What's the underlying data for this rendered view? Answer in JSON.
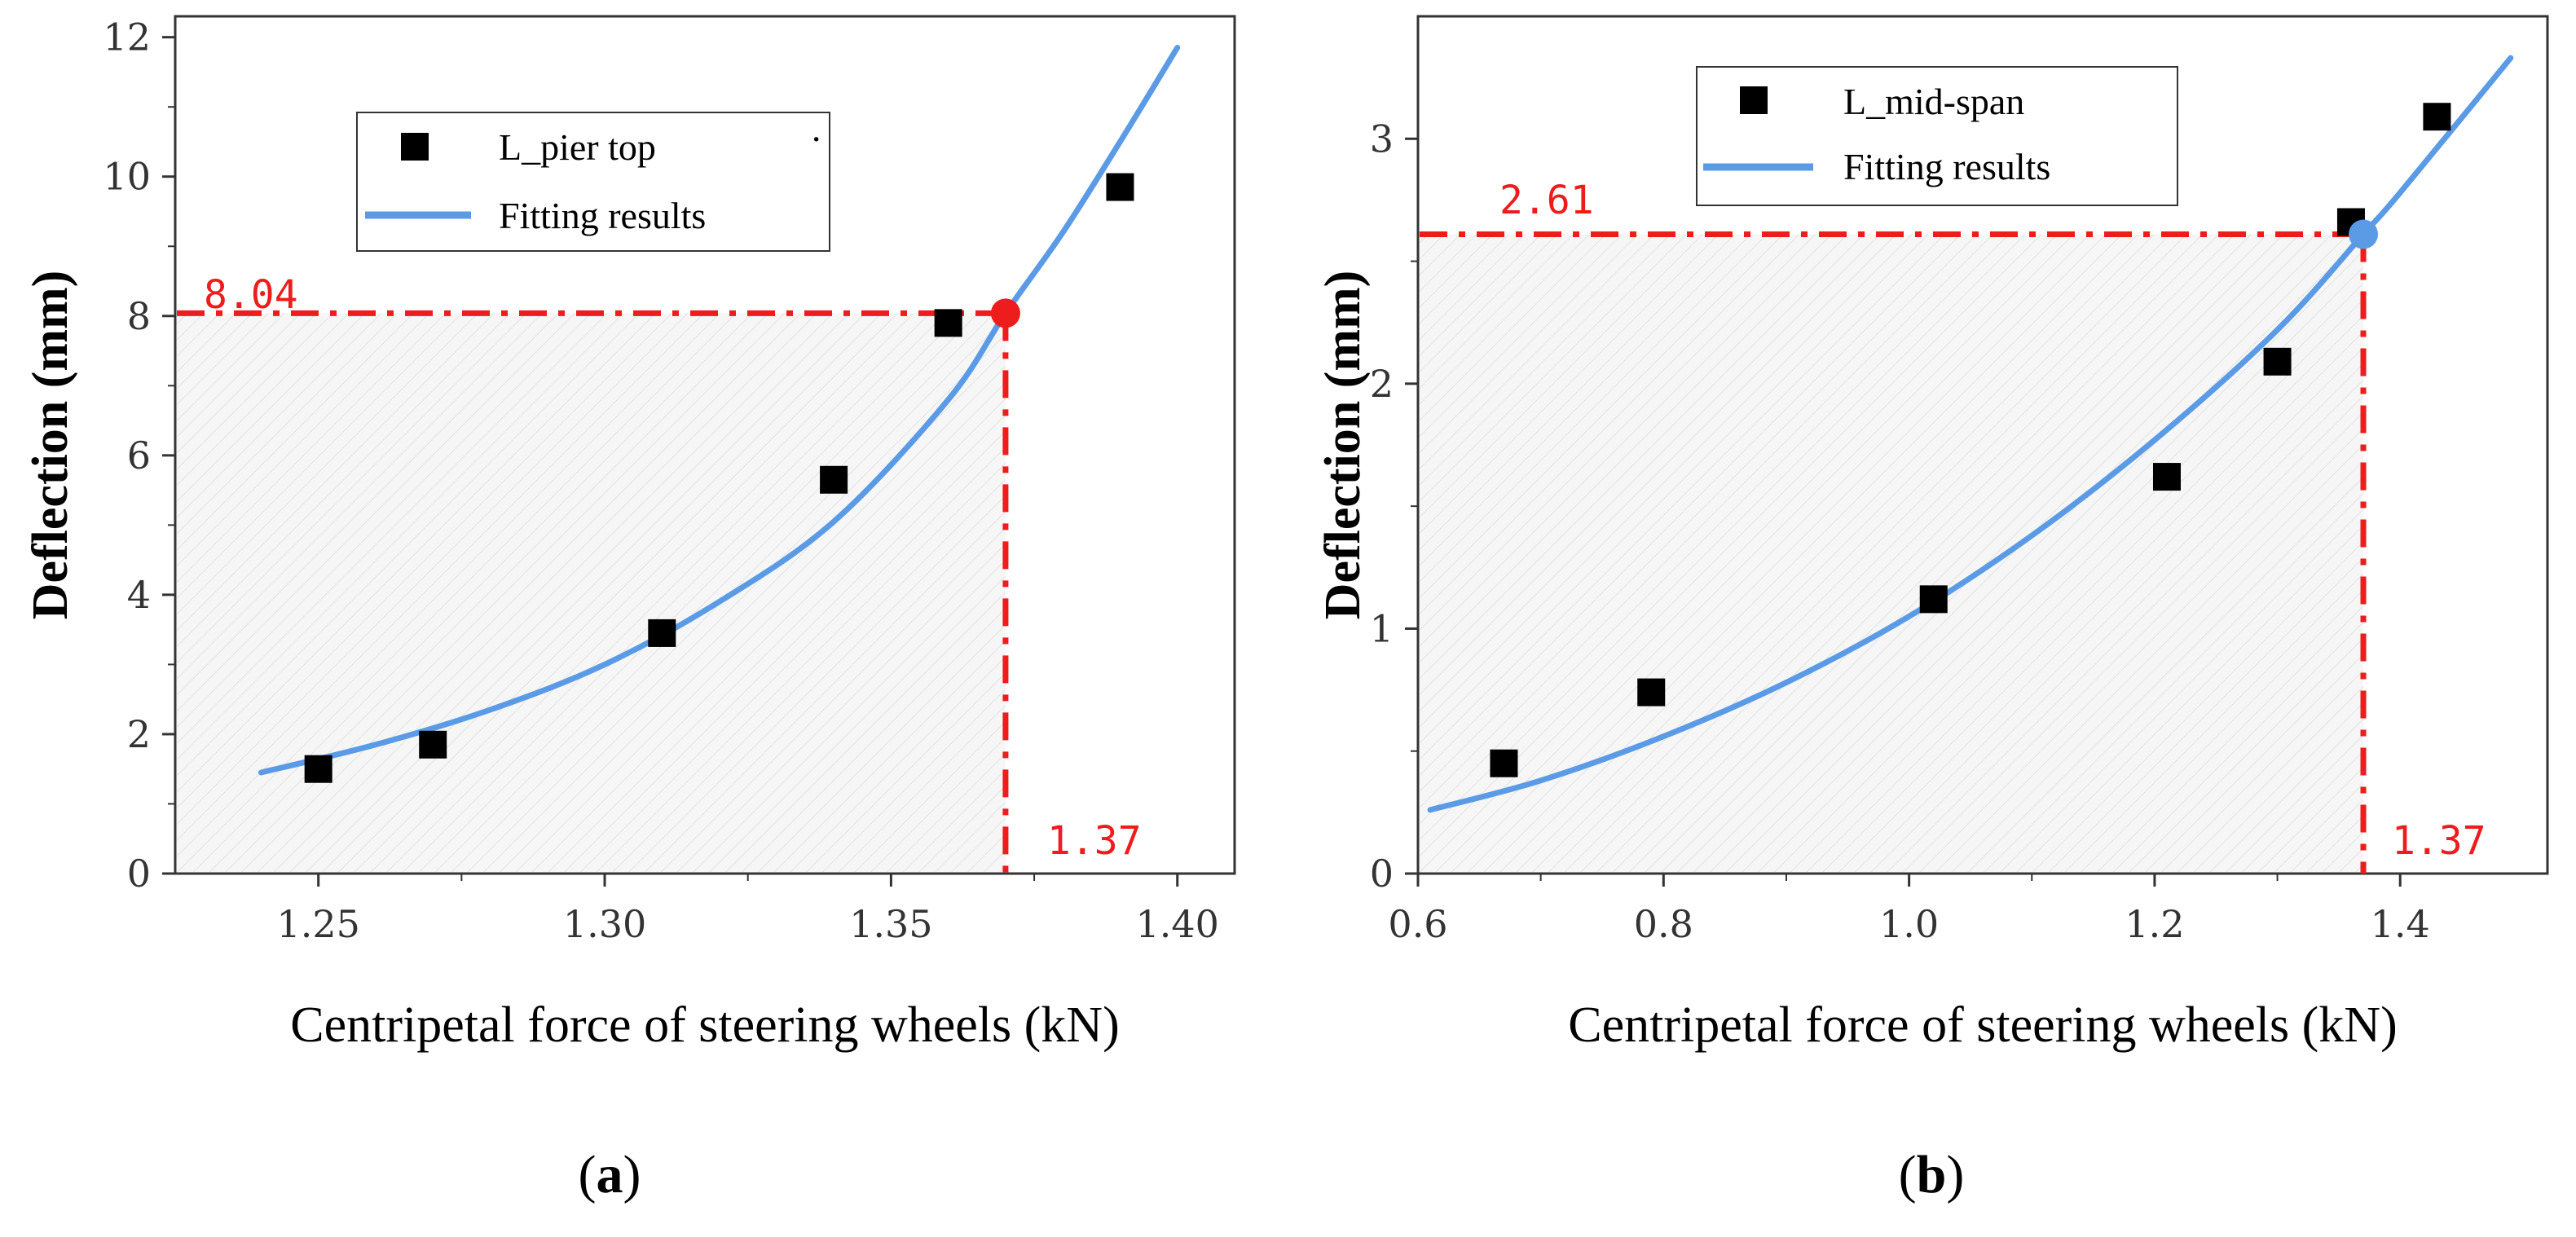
{
  "chart_data": [
    {
      "id": "a",
      "type": "scatter",
      "panel_label": "a",
      "xlabel": "Centripetal force of steering wheels (kN)",
      "ylabel": "Deflection (mm)",
      "xlim": [
        1.225,
        1.41
      ],
      "ylim": [
        0,
        12.3
      ],
      "x_ticks": [
        1.25,
        1.3,
        1.35,
        1.4
      ],
      "x_tick_labels": [
        "1.25",
        "1.30",
        "1.35",
        "1.40"
      ],
      "y_ticks": [
        0,
        2,
        4,
        6,
        8,
        10,
        12
      ],
      "y_tick_labels": [
        "0",
        "2",
        "4",
        "6",
        "8",
        "10",
        "12"
      ],
      "series": [
        {
          "name": "L_pier top",
          "kind": "scatter",
          "x": [
            1.25,
            1.27,
            1.31,
            1.34,
            1.36,
            1.39
          ],
          "y": [
            1.5,
            1.85,
            3.45,
            5.65,
            7.9,
            9.85
          ]
        },
        {
          "name": "Fitting results",
          "kind": "line",
          "x": [
            1.24,
            1.26,
            1.28,
            1.3,
            1.32,
            1.34,
            1.36,
            1.37,
            1.38,
            1.39,
            1.4
          ],
          "y": [
            1.45,
            1.85,
            2.35,
            3.0,
            3.9,
            5.05,
            6.8,
            8.04,
            9.2,
            10.5,
            11.85
          ]
        }
      ],
      "legend": {
        "position": "top-center",
        "entries": [
          "L_pier top",
          "Fitting results"
        ]
      },
      "annotation": {
        "x": 1.37,
        "y": 8.04,
        "x_label": "1.37",
        "y_label": "8.04",
        "marker_color": "#ee1c1c"
      },
      "colors": {
        "fit": "#5b9be6",
        "marker": "#000000",
        "annotation": "#ee1c1c"
      }
    },
    {
      "id": "b",
      "type": "scatter",
      "panel_label": "b",
      "xlabel": "Centripetal force of steering wheels (kN)",
      "ylabel": "Deflection (mm)",
      "xlim": [
        0.6,
        1.52
      ],
      "ylim": [
        0,
        3.5
      ],
      "x_ticks": [
        0.6,
        0.8,
        1.0,
        1.2,
        1.4
      ],
      "x_tick_labels": [
        "0.6",
        "0.8",
        "1.0",
        "1.2",
        "1.4"
      ],
      "y_ticks": [
        0,
        1,
        2,
        3
      ],
      "y_tick_labels": [
        "0",
        "1",
        "2",
        "3"
      ],
      "series": [
        {
          "name": "L_mid-span",
          "kind": "scatter",
          "x": [
            0.67,
            0.79,
            1.02,
            1.21,
            1.3,
            1.36,
            1.43
          ],
          "y": [
            0.45,
            0.74,
            1.12,
            1.62,
            2.09,
            2.66,
            3.09
          ]
        },
        {
          "name": "Fitting results",
          "kind": "line",
          "x": [
            0.61,
            0.7,
            0.8,
            0.9,
            1.0,
            1.1,
            1.2,
            1.3,
            1.37,
            1.4,
            1.49
          ],
          "y": [
            0.26,
            0.38,
            0.56,
            0.78,
            1.05,
            1.38,
            1.77,
            2.22,
            2.61,
            2.78,
            3.33
          ]
        }
      ],
      "legend": {
        "position": "top-center",
        "entries": [
          "L_mid-span",
          "Fitting results"
        ]
      },
      "annotation": {
        "x": 1.37,
        "y": 2.61,
        "x_label": "1.37",
        "y_label": "2.61",
        "marker_color": "#5b9be6"
      },
      "colors": {
        "fit": "#5b9be6",
        "marker": "#000000",
        "annotation": "#ee1c1c"
      }
    }
  ]
}
